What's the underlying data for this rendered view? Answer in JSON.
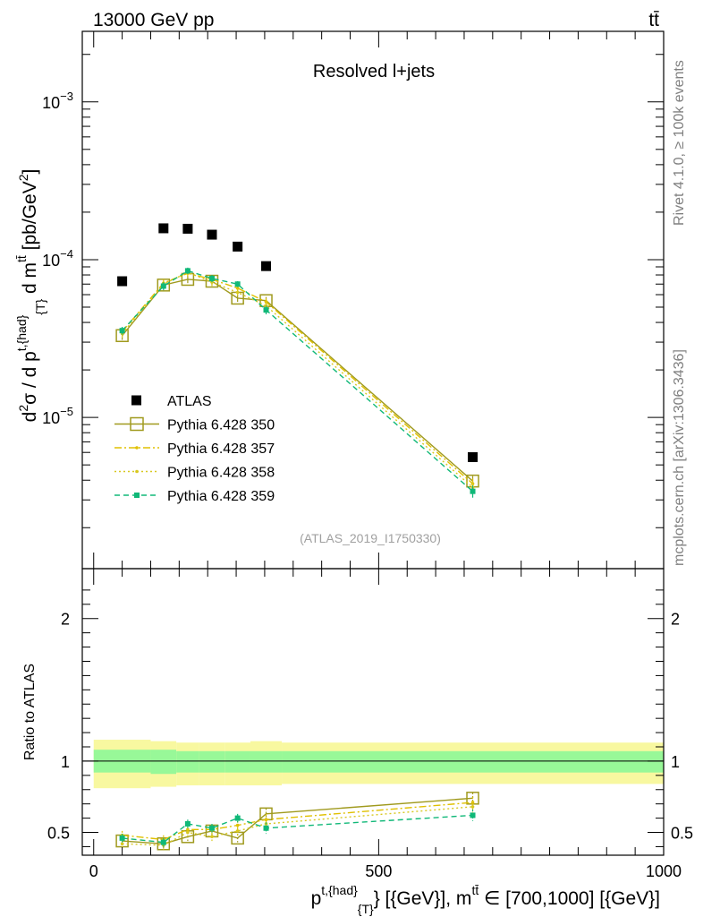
{
  "header": {
    "energy_label": "13000 GeV pp",
    "process_label": "tt̄"
  },
  "side": {
    "rivet_label": "Rivet 4.1.0, ≥ 100k events",
    "source_label": "mcplots.cern.ch [arXiv:1306.3436]"
  },
  "colors": {
    "atlas": "#000000",
    "p350": "#a09a1e",
    "p357": "#e0c000",
    "p358": "#d8c820",
    "p359": "#10b878",
    "band_inner": "#98f898",
    "band_outer": "#f8f8a0"
  },
  "chart_data": [
    {
      "type": "scatter",
      "title": "Resolved l+jets",
      "analysis_label": "(ATLAS_2019_I1750330)",
      "ylabel": "d²σ / d p^{t,{had}}_{T} d m^{tt̄} [pb/GeV²]",
      "yscale": "log",
      "ylim": [
        1.1e-06,
        0.0028
      ],
      "y_ticks": [
        {
          "value": 1e-05,
          "base": "10",
          "exp": "−5"
        },
        {
          "value": 0.0001,
          "base": "10",
          "exp": "−4"
        },
        {
          "value": 0.001,
          "base": "10",
          "exp": "−3"
        }
      ],
      "xlim": [
        -20,
        1000
      ],
      "legend_position": "center-left",
      "series": [
        {
          "name": "ATLAS",
          "key": "atlas",
          "style": "marker",
          "x": [
            50,
            122.5,
            165,
            207.5,
            252.5,
            302.5,
            665
          ],
          "y": [
            7.3e-05,
            0.000158,
            0.000157,
            0.000144,
            0.000121,
            9.1e-05,
            5.6e-06
          ]
        },
        {
          "name": "Pythia 6.428 350",
          "key": "p350",
          "style": "solid",
          "x": [
            50,
            122.5,
            165,
            207.5,
            252.5,
            302.5,
            665
          ],
          "y": [
            3.3e-05,
            6.9e-05,
            7.5e-05,
            7.3e-05,
            5.7e-05,
            5.5e-05,
            3.95e-06
          ],
          "err": [
            2e-06,
            4e-06,
            4e-06,
            4e-06,
            3e-06,
            3e-06,
            3e-07
          ]
        },
        {
          "name": "Pythia 6.428 357",
          "key": "p357",
          "style": "dashdot",
          "x": [
            50,
            122.5,
            165,
            207.5,
            252.5,
            302.5,
            665
          ],
          "y": [
            3.5e-05,
            7.1e-05,
            8.2e-05,
            7.5e-05,
            6.6e-05,
            5.4e-05,
            3.8e-06
          ],
          "err": [
            2e-06,
            4e-06,
            4e-06,
            4e-06,
            3e-06,
            3e-06,
            3e-07
          ]
        },
        {
          "name": "Pythia 6.428 358",
          "key": "p358",
          "style": "dotted",
          "x": [
            50,
            122.5,
            165,
            207.5,
            252.5,
            302.5,
            665
          ],
          "y": [
            3.4e-05,
            7e-05,
            8.3e-05,
            7.2e-05,
            6.2e-05,
            5.1e-05,
            3.6e-06
          ],
          "err": [
            2e-06,
            4e-06,
            4e-06,
            4e-06,
            3e-06,
            3e-06,
            3e-07
          ]
        },
        {
          "name": "Pythia 6.428 359",
          "key": "p359",
          "style": "dashed",
          "x": [
            50,
            122.5,
            165,
            207.5,
            252.5,
            302.5,
            665
          ],
          "y": [
            3.55e-05,
            6.8e-05,
            8.5e-05,
            7.6e-05,
            7e-05,
            4.8e-05,
            3.4e-06
          ],
          "err": [
            2e-06,
            4e-06,
            4e-06,
            4e-06,
            3e-06,
            3e-06,
            3e-07
          ]
        }
      ]
    },
    {
      "type": "scatter",
      "ylabel": "Ratio to ATLAS",
      "ylim": [
        0.34,
        2.35
      ],
      "y_ticks": [
        0.5,
        1,
        2
      ],
      "xlim": [
        -20,
        1000
      ],
      "x_ticks": [
        0,
        500,
        1000
      ],
      "xlabel": "p^{t,{had}}_{T} [{GeV}], m^{tt̄} ∈ [700,1000] [{GeV}]",
      "bands": {
        "bin_edges": [
          0,
          100,
          145,
          185,
          230,
          275,
          330,
          1000
        ],
        "inner_low": [
          0.92,
          0.91,
          0.92,
          0.92,
          0.92,
          0.92,
          0.92
        ],
        "inner_high": [
          1.08,
          1.08,
          1.07,
          1.07,
          1.07,
          1.07,
          1.07
        ],
        "outer_low": [
          0.81,
          0.82,
          0.83,
          0.83,
          0.83,
          0.83,
          0.84
        ],
        "outer_high": [
          1.15,
          1.14,
          1.13,
          1.13,
          1.13,
          1.14,
          1.13
        ]
      },
      "series": [
        {
          "name": "Pythia 6.428 350",
          "key": "p350",
          "style": "solid",
          "x": [
            50,
            122.5,
            165,
            207.5,
            252.5,
            302.5,
            665
          ],
          "y": [
            0.44,
            0.42,
            0.47,
            0.51,
            0.46,
            0.63,
            0.74
          ],
          "err": [
            0.03,
            0.03,
            0.03,
            0.03,
            0.03,
            0.04,
            0.04
          ]
        },
        {
          "name": "Pythia 6.428 357",
          "key": "p357",
          "style": "dashdot",
          "x": [
            50,
            122.5,
            165,
            207.5,
            252.5,
            302.5,
            665
          ],
          "y": [
            0.48,
            0.45,
            0.52,
            0.52,
            0.55,
            0.59,
            0.71
          ],
          "err": [
            0.03,
            0.03,
            0.03,
            0.03,
            0.03,
            0.04,
            0.04
          ]
        },
        {
          "name": "Pythia 6.428 358",
          "key": "p358",
          "style": "dotted",
          "x": [
            50,
            122.5,
            165,
            207.5,
            252.5,
            302.5,
            665
          ],
          "y": [
            0.42,
            0.41,
            0.5,
            0.47,
            0.51,
            0.56,
            0.68
          ],
          "err": [
            0.03,
            0.03,
            0.03,
            0.03,
            0.03,
            0.04,
            0.04
          ]
        },
        {
          "name": "Pythia 6.428 359",
          "key": "p359",
          "style": "dashed",
          "x": [
            50,
            122.5,
            165,
            207.5,
            252.5,
            302.5,
            665
          ],
          "y": [
            0.46,
            0.43,
            0.56,
            0.53,
            0.6,
            0.53,
            0.62
          ],
          "err": [
            0.03,
            0.03,
            0.03,
            0.03,
            0.03,
            0.04,
            0.04
          ]
        }
      ]
    }
  ]
}
